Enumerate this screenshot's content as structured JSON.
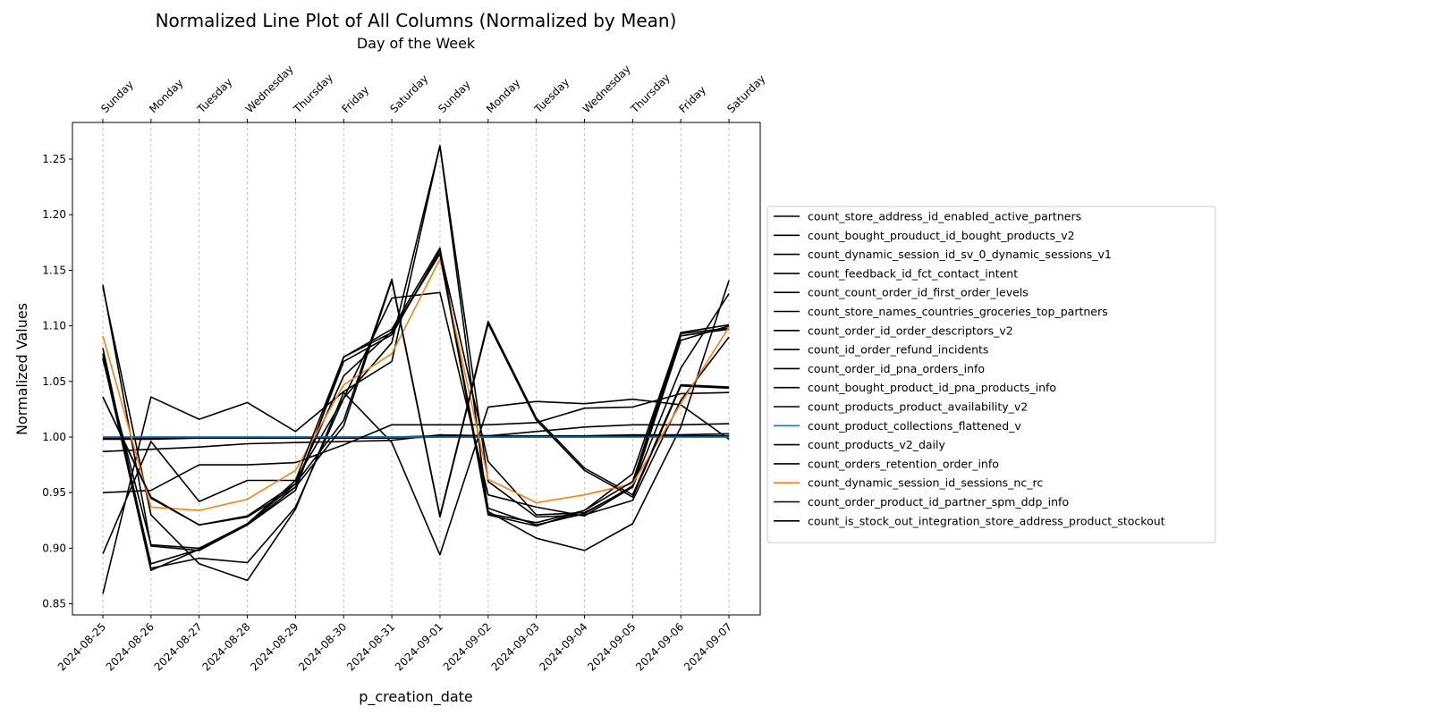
{
  "chart_data": {
    "type": "line",
    "title": "Normalized Line Plot of All Columns (Normalized by Mean)",
    "subtitle": "Day of the Week",
    "xlabel": "p_creation_date",
    "ylabel": "Normalized Values",
    "x": [
      "2024-08-25",
      "2024-08-26",
      "2024-08-27",
      "2024-08-28",
      "2024-08-29",
      "2024-08-30",
      "2024-08-31",
      "2024-09-01",
      "2024-09-02",
      "2024-09-03",
      "2024-09-04",
      "2024-09-05",
      "2024-09-06",
      "2024-09-07"
    ],
    "top_axis_labels": [
      "Sunday",
      "Monday",
      "Tuesday",
      "Wednesday",
      "Thursday",
      "Friday",
      "Saturday",
      "Sunday",
      "Monday",
      "Tuesday",
      "Wednesday",
      "Thursday",
      "Friday",
      "Saturday"
    ],
    "ylim": [
      0.84,
      1.283
    ],
    "yticks": [
      0.85,
      0.9,
      0.95,
      1.0,
      1.05,
      1.1,
      1.15,
      1.2,
      1.25
    ],
    "ytick_labels": [
      "0.85",
      "0.90",
      "0.95",
      "1.00",
      "1.05",
      "1.10",
      "1.15",
      "1.20",
      "1.25"
    ],
    "grid": "vertical-dashed",
    "legend_position": "right",
    "colors": {
      "default": "#000000",
      "blue": "#1f77b4",
      "orange": "#ff7f0e",
      "grid": "#b0b0b0"
    },
    "series": [
      {
        "name": "count_store_address_id_enabled_active_partners",
        "color": "#000000",
        "values": [
          1.137,
          0.902,
          0.898,
          0.921,
          0.955,
          1.068,
          1.092,
          1.168,
          0.978,
          0.93,
          0.932,
          0.955,
          1.087,
          1.1
        ]
      },
      {
        "name": "count_bought_prouduct_id_bought_products_v2",
        "color": "#000000",
        "values": [
          1.135,
          0.93,
          0.886,
          0.871,
          0.935,
          1.04,
          0.995,
          0.894,
          1.027,
          1.032,
          1.03,
          1.034,
          1.029,
          0.998
        ]
      },
      {
        "name": "count_dynamic_session_id_sv_0_dynamic_sessions_v1",
        "color": "#000000",
        "values": [
          1.036,
          0.945,
          0.921,
          0.929,
          0.958,
          1.015,
          1.142,
          0.929,
          1.104,
          1.017,
          0.972,
          0.948,
          1.047,
          1.045
        ]
      },
      {
        "name": "count_feedback_id_fct_contact_intent",
        "color": "#000000",
        "values": [
          1.0,
          1.0,
          1.0,
          1.0,
          1.0,
          1.0,
          1.0,
          1.0,
          1.0,
          1.0,
          1.0,
          1.0,
          1.0,
          1.0
        ]
      },
      {
        "name": "count_count_order_id_first_order_levels",
        "color": "#000000",
        "values": [
          0.895,
          0.996,
          0.942,
          0.961,
          0.961,
          1.035,
          1.125,
          1.13,
          0.948,
          0.937,
          0.929,
          0.955,
          1.062,
          1.129
        ]
      },
      {
        "name": "count_store_names_countries_groceries_top_partners",
        "color": "#000000",
        "values": [
          0.998,
          0.998,
          0.999,
          0.999,
          1.0,
          1.0,
          1.0,
          1.001,
          1.001,
          1.001,
          1.001,
          1.002,
          1.002,
          1.003
        ]
      },
      {
        "name": "count_order_id_order_descriptors_v2",
        "color": "#000000",
        "values": [
          0.987,
          0.989,
          0.991,
          0.994,
          0.995,
          0.996,
          0.997,
          1.002,
          1.001,
          1.005,
          1.009,
          1.011,
          1.011,
          1.012
        ]
      },
      {
        "name": "count_id_order_refund_incidents",
        "color": "#000000",
        "values": [
          0.859,
          1.036,
          1.016,
          1.031,
          1.005,
          1.041,
          1.068,
          1.262,
          0.933,
          0.909,
          0.898,
          0.922,
          1.009,
          1.141
        ]
      },
      {
        "name": "count_order_id_pna_orders_info",
        "color": "#000000",
        "values": [
          1.08,
          0.882,
          0.891,
          0.887,
          0.937,
          1.035,
          1.085,
          1.262,
          0.96,
          0.928,
          0.93,
          0.943,
          1.033,
          1.09
        ]
      },
      {
        "name": "count_bought_product_id_pna_products_info",
        "color": "#000000",
        "values": [
          1.072,
          0.88,
          0.899,
          0.922,
          0.958,
          1.055,
          1.095,
          1.165,
          0.936,
          0.921,
          0.931,
          0.956,
          1.091,
          1.097
        ]
      },
      {
        "name": "count_products_product_availability_v2",
        "color": "#000000",
        "values": [
          0.999,
          0.999,
          0.999,
          0.999,
          0.999,
          0.999,
          0.999,
          1.0,
          1.0,
          1.0,
          1.0,
          1.001,
          1.001,
          1.001
        ]
      },
      {
        "name": "count_product_collections_flattened_v",
        "color": "#1f77b4",
        "values": [
          1.0,
          1.0,
          1.0,
          1.0,
          1.0,
          1.0,
          1.0,
          1.0,
          1.0,
          1.0,
          1.0,
          1.0,
          1.0,
          1.0
        ]
      },
      {
        "name": "count_products_v2_daily",
        "color": "#000000",
        "values": [
          0.95,
          0.952,
          0.975,
          0.975,
          0.977,
          0.993,
          1.011,
          1.011,
          1.011,
          1.013,
          1.026,
          1.027,
          1.039,
          1.04
        ]
      },
      {
        "name": "count_orders_retention_order_info",
        "color": "#000000",
        "values": [
          1.075,
          0.886,
          0.899,
          0.921,
          0.952,
          1.072,
          1.097,
          1.17,
          0.931,
          0.923,
          0.934,
          0.967,
          1.093,
          1.098
        ]
      },
      {
        "name": "count_dynamic_session_id_sessions_nc_rc",
        "color": "#ff7f0e",
        "values": [
          1.091,
          0.937,
          0.934,
          0.944,
          0.97,
          1.047,
          1.075,
          1.16,
          0.962,
          0.941,
          0.948,
          0.958,
          1.03,
          1.099
        ]
      },
      {
        "name": "count_order_product_id_partner_spm_ddp_info",
        "color": "#000000",
        "values": [
          1.07,
          0.903,
          0.9,
          0.922,
          0.961,
          1.072,
          1.094,
          1.165,
          0.93,
          0.92,
          0.934,
          0.96,
          1.094,
          1.101
        ]
      },
      {
        "name": "count_is_stock_out_integration_store_address_product_stockout",
        "color": "#000000",
        "values": [
          1.036,
          0.946,
          0.921,
          0.928,
          0.955,
          1.01,
          1.141,
          0.928,
          1.102,
          1.015,
          0.97,
          0.946,
          1.046,
          1.044
        ]
      }
    ]
  }
}
